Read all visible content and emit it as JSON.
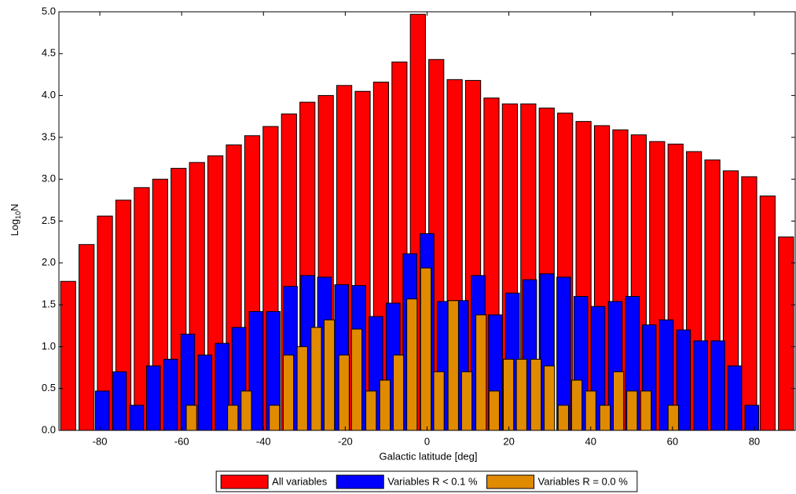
{
  "chart_data": {
    "type": "bar",
    "xlabel": "Galactic latitude [deg]",
    "ylabel": [
      "Log",
      "10",
      "N"
    ],
    "xlim": [
      -90,
      90
    ],
    "xticks": [
      -80,
      -60,
      -40,
      -20,
      0,
      20,
      40,
      60,
      80
    ],
    "ylim": [
      0,
      5
    ],
    "yticks": [
      {
        "value": 0,
        "label": "0.0"
      },
      0.5,
      {
        "value": 1,
        "label": "1.0"
      },
      1.5,
      {
        "value": 2,
        "label": "2.0"
      },
      2.5,
      {
        "value": 3,
        "label": "3.0"
      },
      3.5,
      {
        "value": 4,
        "label": "4.0"
      },
      4.5,
      {
        "value": 5,
        "label": "5.0"
      }
    ],
    "legend": "bottom",
    "series": [
      {
        "name": "All variables",
        "color": "#ff0000",
        "x": [
          -87.75,
          -83.25,
          -78.75,
          -74.25,
          -69.75,
          -65.25,
          -60.75,
          -56.25,
          -51.75,
          -47.25,
          -42.75,
          -38.25,
          -33.75,
          -29.25,
          -24.75,
          -20.25,
          -15.75,
          -11.25,
          -6.75,
          -2.25,
          2.25,
          6.75,
          11.25,
          15.75,
          20.25,
          24.75,
          29.25,
          33.75,
          38.25,
          42.75,
          47.25,
          51.75,
          56.25,
          60.75,
          65.25,
          69.75,
          74.25,
          78.75,
          83.25,
          87.75
        ],
        "values": [
          1.78,
          2.22,
          2.56,
          2.75,
          2.9,
          3.0,
          3.13,
          3.2,
          3.28,
          3.41,
          3.52,
          3.63,
          3.78,
          3.92,
          4.0,
          4.12,
          4.05,
          4.16,
          4.4,
          4.97,
          4.43,
          4.19,
          4.18,
          3.97,
          3.9,
          3.9,
          3.85,
          3.79,
          3.69,
          3.64,
          3.59,
          3.53,
          3.45,
          3.42,
          3.33,
          3.23,
          3.1,
          3.03,
          2.8,
          2.31
        ]
      },
      {
        "name": "Variables  R < 0.1 %",
        "color": "#0000ff",
        "x": [
          -79.4,
          -75.2,
          -71.0,
          -66.9,
          -62.7,
          -58.5,
          -54.3,
          -50.1,
          -46.0,
          -41.8,
          -37.6,
          -33.4,
          -29.2,
          -25.1,
          -20.9,
          -16.7,
          -12.5,
          -8.3,
          -4.2,
          0.0,
          4.2,
          8.4,
          12.5,
          16.7,
          20.9,
          25.1,
          29.3,
          33.4,
          37.6,
          41.8,
          46.0,
          50.2,
          54.3,
          58.5,
          62.7,
          66.9,
          71.1,
          75.2,
          79.4
        ],
        "values": [
          0.47,
          0.7,
          0.3,
          0.77,
          0.85,
          1.15,
          0.9,
          1.04,
          1.23,
          1.42,
          1.42,
          1.72,
          1.85,
          1.83,
          1.74,
          1.73,
          1.36,
          1.52,
          2.11,
          2.35,
          1.54,
          1.55,
          1.85,
          1.38,
          1.64,
          1.8,
          1.87,
          1.83,
          1.6,
          1.48,
          1.54,
          1.6,
          1.26,
          1.32,
          1.2,
          1.07,
          1.07,
          0.77,
          0.3
        ]
      },
      {
        "name": "Variables  R = 0.0 %",
        "color": "#e08a00",
        "x": [
          -57.6,
          -47.5,
          -44.2,
          -37.3,
          -33.9,
          -30.5,
          -27.1,
          -23.9,
          -20.3,
          -17.2,
          -13.7,
          -10.3,
          -7.0,
          -3.7,
          -0.3,
          2.9,
          6.4,
          9.7,
          13.2,
          16.4,
          19.9,
          23.1,
          26.6,
          29.9,
          33.3,
          36.6,
          40.0,
          43.5,
          46.8,
          50.1,
          53.5,
          60.2
        ],
        "values": [
          0.3,
          0.3,
          0.47,
          0.3,
          0.9,
          1.0,
          1.23,
          1.32,
          0.9,
          1.21,
          0.47,
          0.6,
          0.9,
          1.57,
          1.94,
          0.7,
          1.55,
          0.7,
          1.38,
          0.47,
          0.85,
          0.85,
          0.85,
          0.77,
          0.3,
          0.6,
          0.47,
          0.3,
          0.7,
          0.47,
          0.47,
          0.3
        ]
      }
    ]
  }
}
